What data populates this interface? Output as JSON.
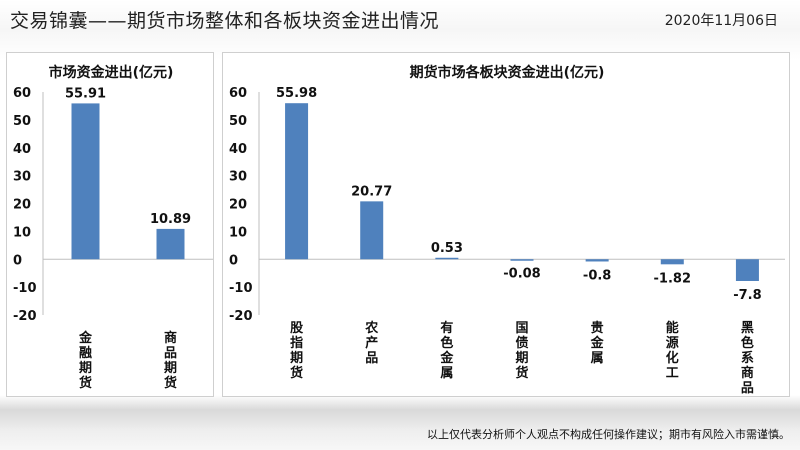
{
  "header": {
    "title": "交易锦囊——期货市场整体和各板块资金进出情况",
    "date": "2020年11月06日"
  },
  "footer": {
    "disclaimer": "以上仅代表分析师个人观点不构成任何操作建议；期市有风险入市需谨慎。"
  },
  "colors": {
    "bar": "#4f81bd"
  },
  "chart_data": [
    {
      "type": "bar",
      "title": "市场资金进出(亿元)",
      "categories": [
        "金融期货",
        "商品期货"
      ],
      "values": [
        55.91,
        10.89
      ],
      "value_labels": [
        "55.91",
        "10.89"
      ],
      "ylim": [
        -20,
        60
      ],
      "yticks": [
        60,
        50,
        40,
        30,
        20,
        10,
        0,
        -10,
        -20
      ],
      "ytick_labels": [
        "60",
        "50",
        "40",
        "30",
        "20",
        "10",
        "0",
        "-10",
        "-20"
      ],
      "grid": false,
      "legend": "none"
    },
    {
      "type": "bar",
      "title": "期货市场各板块资金进出(亿元)",
      "categories": [
        "股指期货",
        "农产品",
        "有色金属",
        "国债期货",
        "贵金属",
        "能源化工",
        "黑色系商品"
      ],
      "values": [
        55.98,
        20.77,
        0.53,
        -0.08,
        -0.8,
        -1.82,
        -7.8
      ],
      "value_labels": [
        "55.98",
        "20.77",
        "0.53",
        "-0.08",
        "-0.8",
        "-1.82",
        "-7.8"
      ],
      "ylim": [
        -20,
        60
      ],
      "yticks": [
        60,
        50,
        40,
        30,
        20,
        10,
        0,
        -10,
        -20
      ],
      "ytick_labels": [
        "60",
        "50",
        "40",
        "30",
        "20",
        "10",
        "0",
        "-10",
        "-20"
      ],
      "grid": false,
      "legend": "none"
    }
  ]
}
